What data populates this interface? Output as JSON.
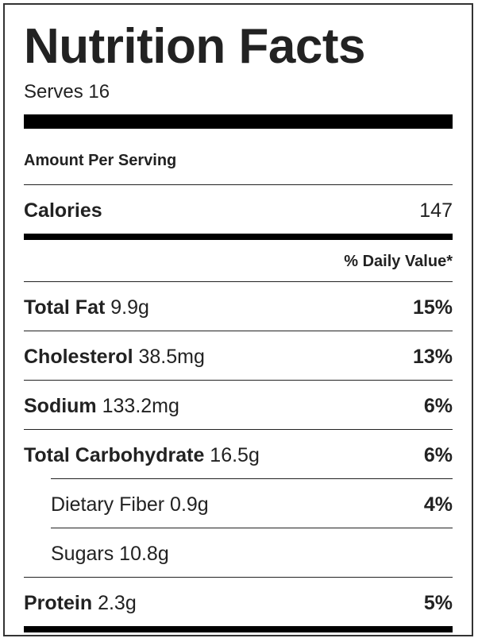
{
  "label": {
    "title": "Nutrition Facts",
    "serves": "Serves 16",
    "amount_per_serving": "Amount Per Serving",
    "calories": {
      "label": "Calories",
      "value": "147"
    },
    "daily_value_header": "% Daily Value*",
    "nutrients": [
      {
        "name": "Total Fat",
        "amount": "9.9g",
        "daily_value": "15%"
      },
      {
        "name": "Cholesterol",
        "amount": "38.5mg",
        "daily_value": "13%"
      },
      {
        "name": "Sodium",
        "amount": "133.2mg",
        "daily_value": "6%"
      },
      {
        "name": "Total Carbohydrate",
        "amount": "16.5g",
        "daily_value": "6%"
      },
      {
        "name": "Dietary Fiber",
        "amount": "0.9g",
        "daily_value": "4%"
      },
      {
        "name": "Sugars",
        "amount": "10.8g",
        "daily_value": ""
      },
      {
        "name": "Protein",
        "amount": "2.3g",
        "daily_value": "5%"
      }
    ]
  }
}
